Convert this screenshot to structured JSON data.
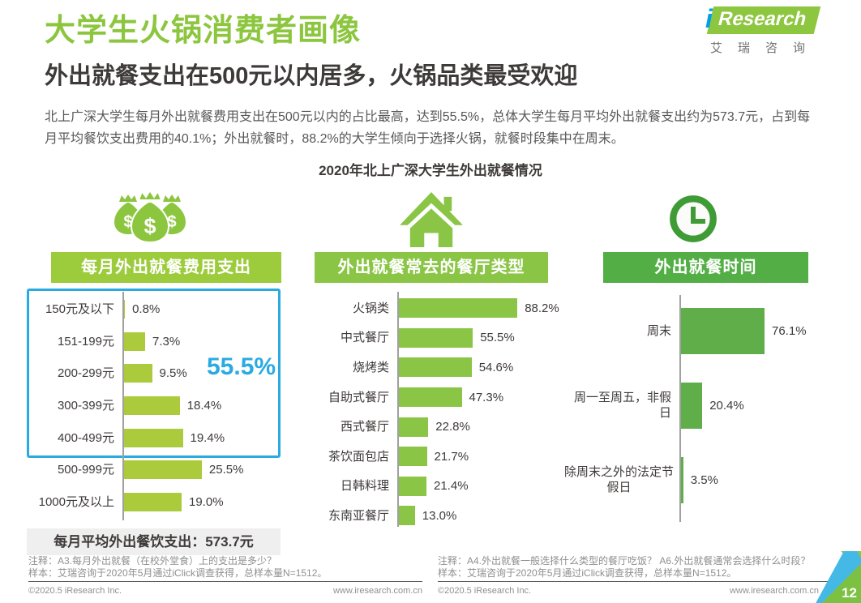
{
  "header": {
    "title": "大学生火锅消费者画像",
    "subtitle": "外出就餐支出在500元以内居多，火锅品类最受欢迎",
    "logo": {
      "i": "i",
      "research": "Research",
      "chinese": "艾瑞咨询"
    }
  },
  "intro": "北上广深大学生每月外出就餐费用支出在500元以内的占比最高，达到55.5%，总体大学生每月平均外出就餐支出约为573.7元，占到每月平均餐饮支出费用的40.1%；外出就餐时，88.2%的大学生倾向于选择火锅，就餐时段集中在周末。",
  "section_title": "2020年北上广深大学生外出就餐情况",
  "chart_data": [
    {
      "type": "bar",
      "orientation": "horizontal",
      "title": "每月外出就餐费用支出",
      "icon": "money-bags-icon",
      "categories": [
        "150元及以下",
        "151-199元",
        "200-299元",
        "300-399元",
        "400-499元",
        "500-999元",
        "1000元及以上"
      ],
      "values": [
        0.8,
        7.3,
        9.5,
        18.4,
        19.4,
        25.5,
        19.0
      ],
      "value_labels": [
        "0.8%",
        "7.3%",
        "9.5%",
        "18.4%",
        "19.4%",
        "25.5%",
        "19.0%"
      ],
      "bar_color": "#abcb3d",
      "header_color": "#9ccb3c",
      "xlim": [
        0,
        100
      ],
      "grid": false,
      "highlight": {
        "label": "55.5%",
        "color": "#29abe2"
      },
      "summary": "每月平均外出餐饮支出：573.7元"
    },
    {
      "type": "bar",
      "orientation": "horizontal",
      "title": "外出就餐常去的餐厅类型",
      "icon": "house-icon",
      "categories": [
        "火锅类",
        "中式餐厅",
        "烧烤类",
        "自助式餐厅",
        "西式餐厅",
        "茶饮面包店",
        "日韩料理",
        "东南亚餐厅"
      ],
      "values": [
        88.2,
        55.5,
        54.6,
        47.3,
        22.8,
        21.7,
        21.4,
        13.0
      ],
      "value_labels": [
        "88.2%",
        "55.5%",
        "54.6%",
        "47.3%",
        "22.8%",
        "21.7%",
        "21.4%",
        "13.0%"
      ],
      "bar_color": "#8bc546",
      "header_color": "#8bc546",
      "xlim": [
        0,
        100
      ],
      "grid": false
    },
    {
      "type": "bar",
      "orientation": "horizontal",
      "title": "外出就餐时间",
      "icon": "clock-icon",
      "categories": [
        "周末",
        "周一至周五，非假日",
        "除周末之外的法定节假日"
      ],
      "values": [
        76.1,
        20.4,
        3.5
      ],
      "value_labels": [
        "76.1%",
        "20.4%",
        "3.5%"
      ],
      "bar_color": "#5fae4a",
      "header_color": "#53ae46",
      "xlim": [
        0,
        100
      ],
      "grid": false
    }
  ],
  "footnotes": {
    "left": {
      "note": "注释：A3.每月外出就餐（在校外堂食）上的支出是多少？",
      "sample": "样本：艾瑞咨询于2020年5月通过iClick调查获得，总样本量N=1512。"
    },
    "right": {
      "note": "注释：A4.外出就餐一般选择什么类型的餐厅吃饭？ A6.外出就餐通常会选择什么时段？",
      "sample": "样本：艾瑞咨询于2020年5月通过iClick调查获得，总样本量N=1512。"
    }
  },
  "footer": {
    "left": {
      "copyright": "©2020.5 iResearch Inc.",
      "url": "www.iresearch.com.cn"
    },
    "right": {
      "copyright": "©2020.5 iResearch Inc.",
      "url": "www.iresearch.com.cn"
    },
    "page_number": "12"
  },
  "colors": {
    "accent_green": "#8cc63f",
    "mid_green": "#8bc546",
    "dark_green": "#3f9b35",
    "bar_yellow_green": "#abcb3d",
    "bar_dark_green": "#5fae4a",
    "highlight_blue": "#29abe2",
    "text_dark": "#3e3a39",
    "text_gray": "#595757"
  }
}
